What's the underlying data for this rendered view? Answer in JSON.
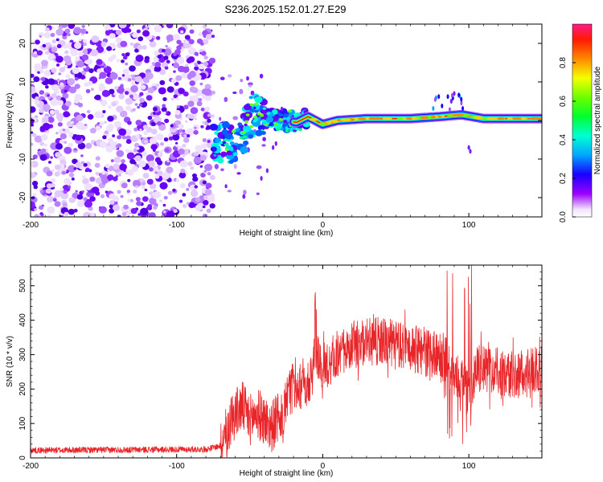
{
  "title": "S236.2025.152.01.27.E29",
  "chart_data": [
    {
      "type": "heatmap",
      "xlabel": "Height of straight line (km)",
      "ylabel": "Frequency (Hz)",
      "xlim": [
        -200,
        150
      ],
      "ylim": [
        -25,
        25
      ],
      "x_ticks": [
        -200,
        -100,
        0,
        100
      ],
      "y_ticks": [
        -20,
        -10,
        0,
        10,
        20
      ],
      "colorbar": {
        "label": "Normalized spectral amplitude",
        "range": [
          0,
          1
        ],
        "ticks": [
          0.0,
          0.2,
          0.4,
          0.6,
          0.8
        ]
      },
      "features": {
        "noise_region_x": [
          -200,
          -75
        ],
        "ridge": [
          {
            "x": -75,
            "y": -5
          },
          {
            "x": -62,
            "y": -6
          },
          {
            "x": -55,
            "y": -4
          },
          {
            "x": -48,
            "y": 2
          },
          {
            "x": -38,
            "y": 0.5
          },
          {
            "x": -25,
            "y": 0
          },
          {
            "x": -18,
            "y": -0.5
          },
          {
            "x": -10,
            "y": 1
          },
          {
            "x": 0,
            "y": -1
          },
          {
            "x": 10,
            "y": 0
          },
          {
            "x": 30,
            "y": 0.5
          },
          {
            "x": 60,
            "y": 0.5
          },
          {
            "x": 80,
            "y": 1
          },
          {
            "x": 95,
            "y": 1.5
          },
          {
            "x": 110,
            "y": 0.5
          },
          {
            "x": 150,
            "y": 0.5
          }
        ]
      }
    },
    {
      "type": "line",
      "xlabel": "Height of straight line (km)",
      "ylabel": "SNR (10 * v/v)",
      "xlim": [
        -200,
        150
      ],
      "ylim": [
        0,
        560
      ],
      "x_ticks": [
        -200,
        -100,
        0,
        100
      ],
      "y_ticks": [
        0,
        100,
        200,
        300,
        400,
        500
      ],
      "line_color": "#e8262a",
      "envelope": [
        {
          "x": -200,
          "y": 22
        },
        {
          "x": -80,
          "y": 25
        },
        {
          "x": -70,
          "y": 35
        },
        {
          "x": -62,
          "y": 120
        },
        {
          "x": -55,
          "y": 150
        },
        {
          "x": -50,
          "y": 110
        },
        {
          "x": -45,
          "y": 130
        },
        {
          "x": -35,
          "y": 90
        },
        {
          "x": -25,
          "y": 150
        },
        {
          "x": -20,
          "y": 220
        },
        {
          "x": -15,
          "y": 210
        },
        {
          "x": -8,
          "y": 230
        },
        {
          "x": -5,
          "y": 300
        },
        {
          "x": 0,
          "y": 260
        },
        {
          "x": 10,
          "y": 300
        },
        {
          "x": 20,
          "y": 330
        },
        {
          "x": 40,
          "y": 340
        },
        {
          "x": 60,
          "y": 320
        },
        {
          "x": 75,
          "y": 300
        },
        {
          "x": 85,
          "y": 280
        },
        {
          "x": 90,
          "y": 250
        },
        {
          "x": 95,
          "y": 230
        },
        {
          "x": 100,
          "y": 180
        },
        {
          "x": 105,
          "y": 260
        },
        {
          "x": 120,
          "y": 250
        },
        {
          "x": 135,
          "y": 240
        },
        {
          "x": 150,
          "y": 260
        }
      ]
    }
  ]
}
